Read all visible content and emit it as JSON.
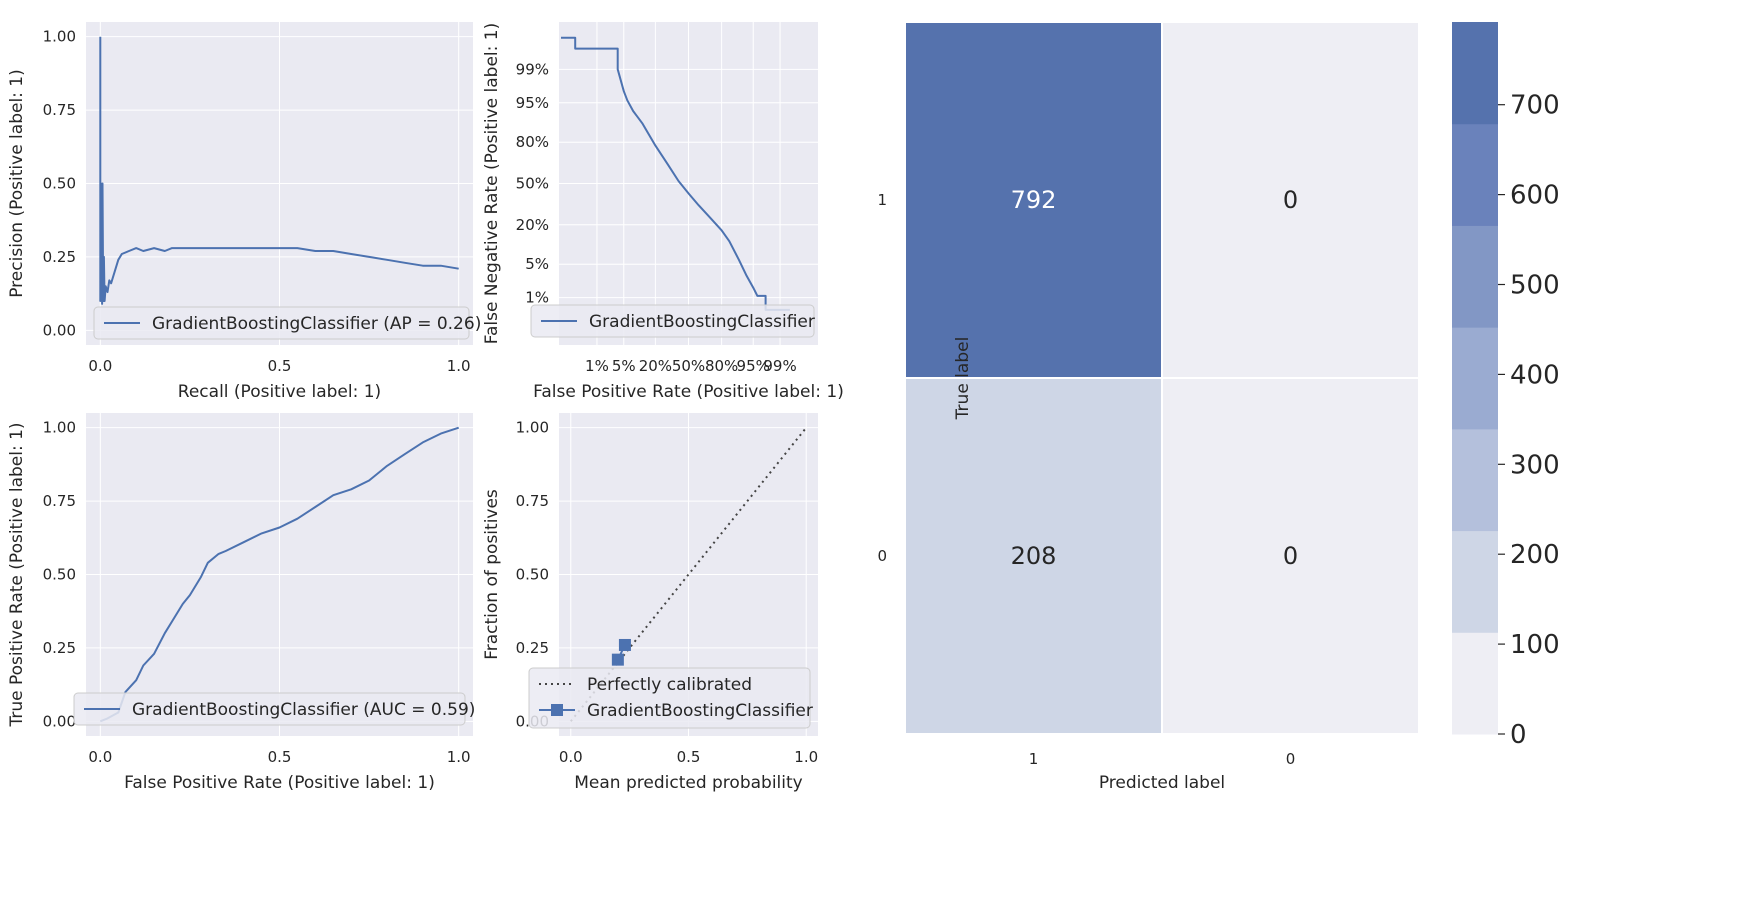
{
  "colors": {
    "panel_bg": "#eaeaf2",
    "grid": "#ffffff",
    "series": "#4c72b0",
    "text": "#262626",
    "cm_low": "#eeeef4"
  },
  "chart_data": [
    {
      "id": "pr",
      "type": "line",
      "xlabel": "Recall (Positive label: 1)",
      "ylabel": "Precision (Positive label: 1)",
      "xlim": [
        -0.04,
        1.04
      ],
      "ylim": [
        -0.05,
        1.05
      ],
      "xticks": [
        {
          "v": 0.0,
          "label": "0.0"
        },
        {
          "v": 0.5,
          "label": "0.5"
        },
        {
          "v": 1.0,
          "label": "1.0"
        }
      ],
      "yticks": [
        {
          "v": 0.0,
          "label": "0.00"
        },
        {
          "v": 0.25,
          "label": "0.25"
        },
        {
          "v": 0.5,
          "label": "0.50"
        },
        {
          "v": 0.75,
          "label": "0.75"
        },
        {
          "v": 1.0,
          "label": "1.00"
        }
      ],
      "grid": true,
      "legend": "lower right",
      "series": [
        {
          "name": "GradientBoostingClassifier (AP = 0.26)",
          "x": [
            0.0,
            0.0,
            0.002,
            0.003,
            0.004,
            0.005,
            0.006,
            0.008,
            0.01,
            0.012,
            0.015,
            0.02,
            0.025,
            0.03,
            0.04,
            0.05,
            0.06,
            0.08,
            0.1,
            0.12,
            0.15,
            0.18,
            0.2,
            0.25,
            0.3,
            0.35,
            0.4,
            0.45,
            0.5,
            0.55,
            0.6,
            0.65,
            0.7,
            0.75,
            0.8,
            0.85,
            0.9,
            0.95,
            1.0
          ],
          "y": [
            1.0,
            0.1,
            0.5,
            0.14,
            0.33,
            0.09,
            0.5,
            0.1,
            0.25,
            0.1,
            0.15,
            0.13,
            0.17,
            0.16,
            0.2,
            0.24,
            0.26,
            0.27,
            0.28,
            0.27,
            0.28,
            0.27,
            0.28,
            0.28,
            0.28,
            0.28,
            0.28,
            0.28,
            0.28,
            0.28,
            0.27,
            0.27,
            0.26,
            0.25,
            0.24,
            0.23,
            0.22,
            0.22,
            0.21
          ]
        }
      ]
    },
    {
      "id": "det",
      "type": "line",
      "xlabel": "False Positive Rate (Positive label: 1)",
      "ylabel": "False Negative Rate (Positive label: 1)",
      "scale": "normal-deviate",
      "xticks": [
        {
          "v": 0.01,
          "label": "1%"
        },
        {
          "v": 0.05,
          "label": "5%"
        },
        {
          "v": 0.2,
          "label": "20%"
        },
        {
          "v": 0.5,
          "label": "50%"
        },
        {
          "v": 0.8,
          "label": "80%"
        },
        {
          "v": 0.95,
          "label": "95%"
        },
        {
          "v": 0.99,
          "label": "99%"
        }
      ],
      "yticks": [
        {
          "v": 0.01,
          "label": "1%"
        },
        {
          "v": 0.05,
          "label": "5%"
        },
        {
          "v": 0.2,
          "label": "20%"
        },
        {
          "v": 0.5,
          "label": "50%"
        },
        {
          "v": 0.8,
          "label": "80%"
        },
        {
          "v": 0.95,
          "label": "95%"
        },
        {
          "v": 0.99,
          "label": "99%"
        }
      ],
      "grid": true,
      "legend": "lower right",
      "series": [
        {
          "name": "GradientBoostingClassifier",
          "x": [
            0.0006,
            0.002,
            0.002,
            0.036,
            0.036,
            0.05,
            0.06,
            0.08,
            0.12,
            0.2,
            0.3,
            0.4,
            0.5,
            0.6,
            0.7,
            0.8,
            0.85,
            0.9,
            0.93,
            0.95,
            0.96,
            0.965,
            0.975,
            0.975,
            0.995
          ],
          "y": [
            0.9985,
            0.9985,
            0.997,
            0.997,
            0.99,
            0.97,
            0.955,
            0.93,
            0.89,
            0.78,
            0.65,
            0.52,
            0.42,
            0.33,
            0.25,
            0.17,
            0.12,
            0.06,
            0.03,
            0.017,
            0.011,
            0.011,
            0.011,
            0.005,
            0.005
          ]
        }
      ]
    },
    {
      "id": "roc",
      "type": "line",
      "xlabel": "False Positive Rate (Positive label: 1)",
      "ylabel": "True Positive Rate (Positive label: 1)",
      "xlim": [
        -0.04,
        1.04
      ],
      "ylim": [
        -0.05,
        1.05
      ],
      "xticks": [
        {
          "v": 0.0,
          "label": "0.0"
        },
        {
          "v": 0.5,
          "label": "0.5"
        },
        {
          "v": 1.0,
          "label": "1.0"
        }
      ],
      "yticks": [
        {
          "v": 0.0,
          "label": "0.00"
        },
        {
          "v": 0.25,
          "label": "0.25"
        },
        {
          "v": 0.5,
          "label": "0.50"
        },
        {
          "v": 0.75,
          "label": "0.75"
        },
        {
          "v": 1.0,
          "label": "1.00"
        }
      ],
      "grid": true,
      "legend": "lower right",
      "series": [
        {
          "name": "GradientBoostingClassifier (AUC = 0.59)",
          "x": [
            0.0,
            0.02,
            0.05,
            0.07,
            0.1,
            0.12,
            0.15,
            0.18,
            0.2,
            0.23,
            0.25,
            0.28,
            0.3,
            0.33,
            0.35,
            0.4,
            0.45,
            0.5,
            0.55,
            0.6,
            0.65,
            0.7,
            0.75,
            0.8,
            0.85,
            0.9,
            0.95,
            1.0
          ],
          "y": [
            0.0,
            0.01,
            0.03,
            0.1,
            0.14,
            0.19,
            0.23,
            0.3,
            0.34,
            0.4,
            0.43,
            0.49,
            0.54,
            0.57,
            0.58,
            0.61,
            0.64,
            0.66,
            0.69,
            0.73,
            0.77,
            0.79,
            0.82,
            0.87,
            0.91,
            0.95,
            0.98,
            1.0
          ]
        }
      ]
    },
    {
      "id": "cal",
      "type": "line",
      "xlabel": "Mean predicted probability",
      "ylabel": "Fraction of positives",
      "xlim": [
        -0.05,
        1.05
      ],
      "ylim": [
        -0.05,
        1.05
      ],
      "xticks": [
        {
          "v": 0.0,
          "label": "0.0"
        },
        {
          "v": 0.5,
          "label": "0.5"
        },
        {
          "v": 1.0,
          "label": "1.0"
        }
      ],
      "yticks": [
        {
          "v": 0.0,
          "label": "0.00"
        },
        {
          "v": 0.25,
          "label": "0.25"
        },
        {
          "v": 0.5,
          "label": "0.50"
        },
        {
          "v": 0.75,
          "label": "0.75"
        },
        {
          "v": 1.0,
          "label": "1.00"
        }
      ],
      "grid": true,
      "legend": "lower right",
      "series": [
        {
          "name": "Perfectly calibrated",
          "style": "dotted",
          "x": [
            0,
            1
          ],
          "y": [
            0,
            1
          ]
        },
        {
          "name": "GradientBoostingClassifier",
          "style": "line-square",
          "x": [
            0.2,
            0.23
          ],
          "y": [
            0.21,
            0.26
          ]
        }
      ]
    },
    {
      "id": "cm",
      "type": "heatmap",
      "xlabel": "Predicted label",
      "ylabel": "True label",
      "row_labels": [
        "1",
        "0"
      ],
      "col_labels": [
        "1",
        "0"
      ],
      "values": [
        [
          792,
          0
        ],
        [
          208,
          0
        ]
      ],
      "colorbar": {
        "min": 0,
        "max": 792,
        "ticks": [
          {
            "v": 0,
            "label": "0"
          },
          {
            "v": 100,
            "label": "100"
          },
          {
            "v": 200,
            "label": "200"
          },
          {
            "v": 300,
            "label": "300"
          },
          {
            "v": 400,
            "label": "400"
          },
          {
            "v": 500,
            "label": "500"
          },
          {
            "v": 600,
            "label": "600"
          },
          {
            "v": 700,
            "label": "700"
          }
        ],
        "bands": [
          "#eeeef4",
          "#ced6e6",
          "#b4c0dc",
          "#9aabd1",
          "#8297c5",
          "#6a82bb",
          "#5572ad"
        ]
      }
    }
  ]
}
